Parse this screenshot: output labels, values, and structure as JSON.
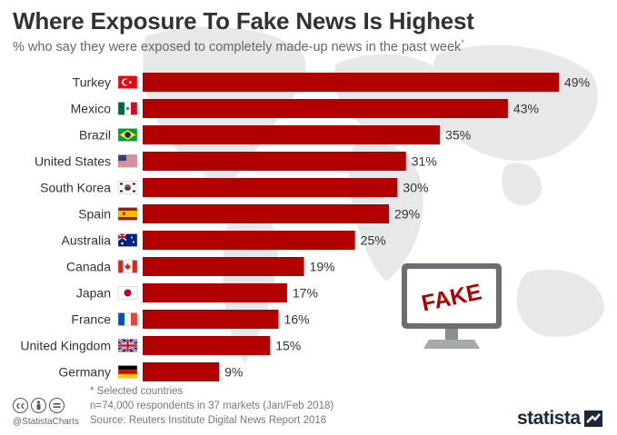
{
  "header": {
    "title": "Where Exposure To Fake News Is Highest",
    "subtitle": "% who say they were exposed to completely made-up news in the past week",
    "subtitle_marker": "*"
  },
  "chart_data": {
    "type": "bar",
    "orientation": "horizontal",
    "categories": [
      "Turkey",
      "Mexico",
      "Brazil",
      "United States",
      "South Korea",
      "Spain",
      "Australia",
      "Canada",
      "Japan",
      "France",
      "United Kingdom",
      "Germany"
    ],
    "values": [
      49,
      43,
      35,
      31,
      30,
      29,
      25,
      19,
      17,
      16,
      15,
      9
    ],
    "value_labels": [
      "49%",
      "43%",
      "35%",
      "31%",
      "30%",
      "29%",
      "25%",
      "19%",
      "17%",
      "16%",
      "15%",
      "9%"
    ],
    "bar_color": "#b20000",
    "xlim": [
      0,
      49
    ],
    "grid": false,
    "legend": "none"
  },
  "illustration": {
    "screen_text": "FAKE"
  },
  "footer": {
    "note": "* Selected countries",
    "respondents": "n=74,000 respondents in 37 markets (Jan/Feb 2018)",
    "source": "Source: Reuters Institute Digital News Report 2018",
    "handle": "@StatistaCharts",
    "brand": "statista",
    "license_icons": [
      "cc-icon",
      "by-icon",
      "nd-icon"
    ]
  }
}
